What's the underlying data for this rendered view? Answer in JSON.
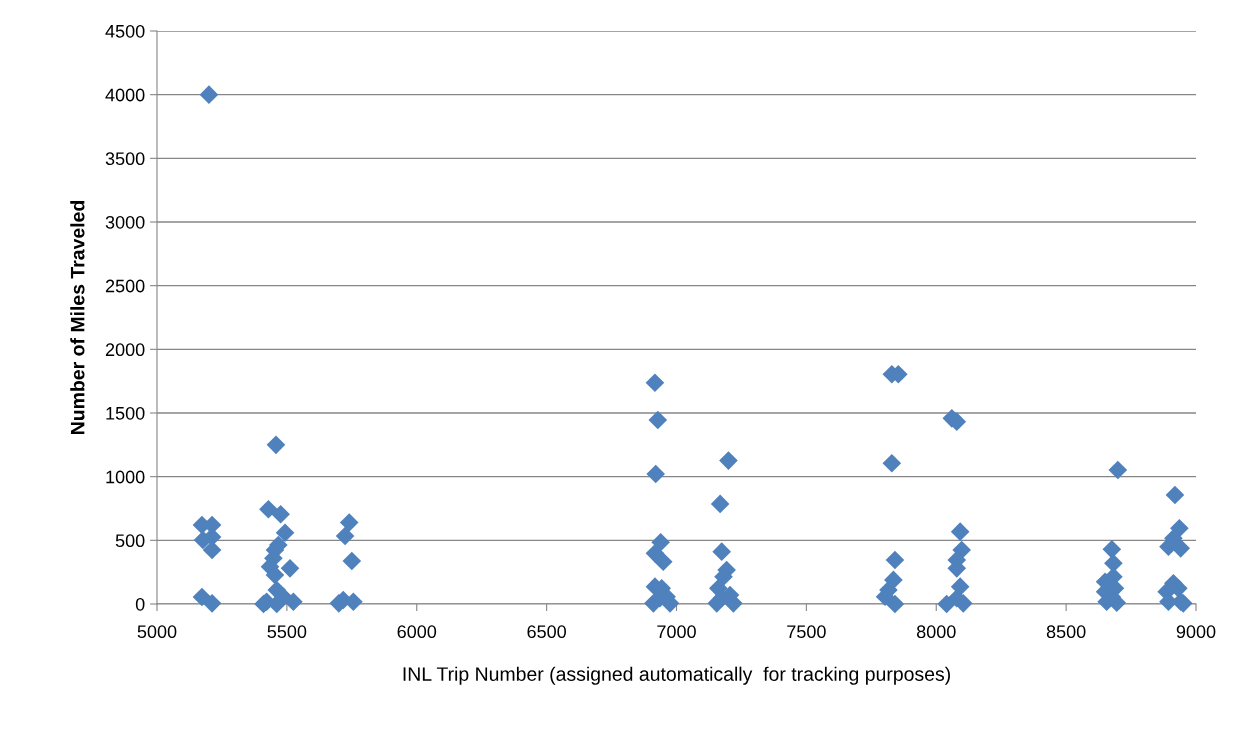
{
  "chart_data": {
    "type": "scatter",
    "xlabel": "INL Trip Number (assigned automatically  for tracking purposes)",
    "ylabel": "Number of Miles Traveled",
    "xlim": [
      5000,
      9000
    ],
    "xticks": [
      5000,
      5500,
      6000,
      6500,
      7000,
      7500,
      8000,
      8500,
      9000
    ],
    "ylim": [
      0,
      4500
    ],
    "yticks": [
      0,
      500,
      1000,
      1500,
      2000,
      2500,
      3000,
      3500,
      4000,
      4500
    ],
    "grid": "y",
    "marker": "diamond",
    "series": [
      {
        "color": "#4f81bd",
        "x": [
          5200,
          5173,
          5212,
          5177,
          5212,
          5212,
          5173,
          5212,
          5458,
          5429,
          5476,
          5493,
          5467,
          5454,
          5448,
          5435,
          5512,
          5454,
          5461,
          5422,
          5486,
          5525,
          5461,
          5410,
          5740,
          5724,
          5750,
          5717,
          5756,
          5700,
          6917,
          6928,
          6920,
          6939,
          6917,
          6949,
          6917,
          6943,
          6911,
          6962,
          6936,
          6975,
          7200,
          7168,
          7174,
          7193,
          7181,
          7161,
          7206,
          7155,
          7219,
          7174,
          7829,
          7854,
          7829,
          7841,
          7835,
          7816,
          7803,
          7841,
          8060,
          8079,
          8092,
          8098,
          8079,
          8079,
          8092,
          8104,
          8079,
          8040,
          8699,
          8676,
          8682,
          8682,
          8650,
          8688,
          8650,
          8656,
          8695,
          8676,
          8919,
          8936,
          8913,
          8894,
          8941,
          8913,
          8932,
          8887,
          8894,
          8941,
          8951
        ],
        "values": [
          4000,
          620,
          620,
          503,
          526,
          424,
          55,
          5,
          1250,
          744,
          705,
          560,
          463,
          424,
          359,
          293,
          280,
          228,
          110,
          18,
          57,
          18,
          0,
          0,
          640,
          534,
          338,
          31,
          18,
          5,
          1738,
          1445,
          1021,
          485,
          398,
          332,
          136,
          123,
          5,
          57,
          45,
          5,
          1126,
          786,
          411,
          267,
          214,
          123,
          71,
          5,
          5,
          45,
          1804,
          1804,
          1105,
          346,
          189,
          110,
          57,
          0,
          1458,
          1432,
          568,
          424,
          346,
          280,
          136,
          5,
          45,
          0,
          1052,
          429,
          320,
          214,
          175,
          123,
          97,
          18,
          10,
          55,
          856,
          595,
          516,
          450,
          437,
          162,
          123,
          97,
          18,
          18,
          5
        ]
      }
    ]
  }
}
